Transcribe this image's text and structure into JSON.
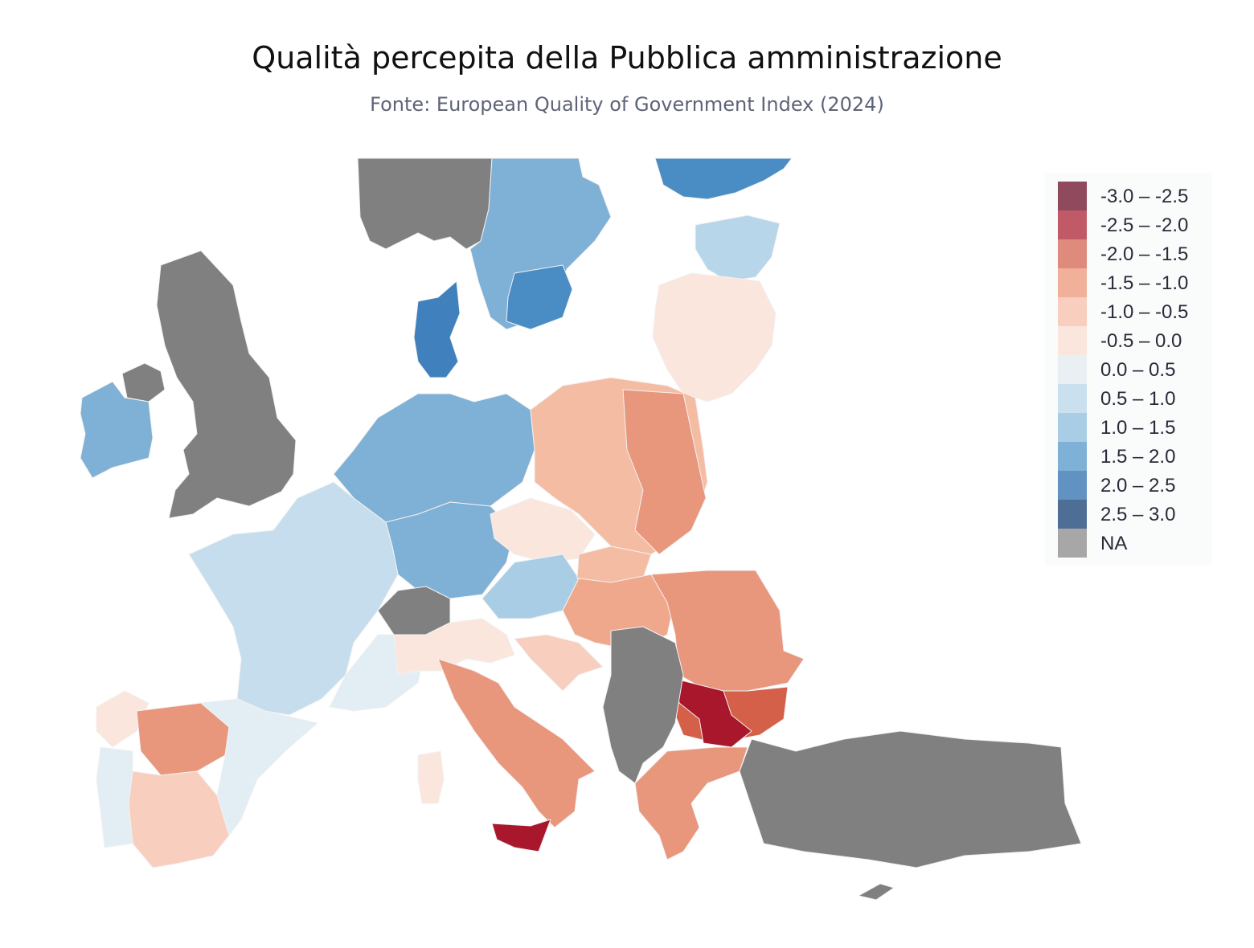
{
  "header": {
    "title": "Qualità percepita della Pubblica amministrazione",
    "subtitle": "Fonte: European Quality of Government Index (2024)"
  },
  "legend": {
    "items": [
      {
        "label": "-3.0 – -2.5",
        "color": "#8f4a5e"
      },
      {
        "label": "-2.5 – -2.0",
        "color": "#c05a66"
      },
      {
        "label": "-2.0 – -1.5",
        "color": "#de8a7c"
      },
      {
        "label": "-1.5 – -1.0",
        "color": "#f0b09a"
      },
      {
        "label": "-1.0 – -0.5",
        "color": "#f8cebe"
      },
      {
        "label": "-0.5 – 0.0",
        "color": "#fae6dc"
      },
      {
        "label": "0.0 – 0.5",
        "color": "#e9eff3"
      },
      {
        "label": "0.5 – 1.0",
        "color": "#cbe0ee"
      },
      {
        "label": "1.0 – 1.5",
        "color": "#a9cde4"
      },
      {
        "label": "1.5 – 2.0",
        "color": "#7fb0d5"
      },
      {
        "label": "2.0 – 2.5",
        "color": "#6292c2"
      },
      {
        "label": "2.5 – 3.0",
        "color": "#4f6e96"
      },
      {
        "label": "NA",
        "color": "#a7a7a7"
      }
    ]
  },
  "regions": [
    {
      "name": "Norway",
      "class": "NA",
      "color": "#808080"
    },
    {
      "name": "Sweden",
      "class": "1.5 – 2.0",
      "color": "#7fb0d5"
    },
    {
      "name": "Sweden South",
      "class": "2.0 – 2.5",
      "color": "#4a8cc4"
    },
    {
      "name": "Finland",
      "class": "2.0 – 2.5",
      "color": "#4a8cc4"
    },
    {
      "name": "Finland South",
      "class": "1.0 – 1.5",
      "color": "#b8d6ea"
    },
    {
      "name": "Russia West",
      "class": "-0.5 – 0.0",
      "color": "#fae6dc"
    },
    {
      "name": "Denmark",
      "class": "2.0 – 2.5",
      "color": "#3f80bd"
    },
    {
      "name": "United Kingdom",
      "class": "NA",
      "color": "#808080"
    },
    {
      "name": "Northern Ireland",
      "class": "NA",
      "color": "#808080"
    },
    {
      "name": "Ireland",
      "class": "1.5 – 2.0",
      "color": "#7fb0d5"
    },
    {
      "name": "Germany North",
      "class": "1.5 – 2.0",
      "color": "#7fb0d5"
    },
    {
      "name": "Germany South",
      "class": "1.5 – 2.0",
      "color": "#7fb0d5"
    },
    {
      "name": "Poland",
      "class": "-1.5 – -1.0",
      "color": "#f5bca4"
    },
    {
      "name": "Poland East",
      "class": "-2.0 – -1.5",
      "color": "#e8967c"
    },
    {
      "name": "Czechia",
      "class": "-0.5 – 0.0",
      "color": "#fae6dc"
    },
    {
      "name": "Austria",
      "class": "1.0 – 1.5",
      "color": "#a9cde4"
    },
    {
      "name": "Slovakia",
      "class": "-1.5 – -1.0",
      "color": "#f5bca4"
    },
    {
      "name": "Hungary",
      "class": "-1.5 – -1.0",
      "color": "#f0a88c"
    },
    {
      "name": "Romania",
      "class": "-2.0 – -1.5",
      "color": "#e8967c"
    },
    {
      "name": "Bulgaria",
      "class": "-2.5 – -2.0",
      "color": "#d4604a"
    },
    {
      "name": "Bulgaria Southwest",
      "class": "-3.0 – -2.5",
      "color": "#a8172c"
    },
    {
      "name": "France",
      "class": "0.5 – 1.0",
      "color": "#c5ddec"
    },
    {
      "name": "France Southeast",
      "class": "0.0 – 0.5",
      "color": "#e3edf4"
    },
    {
      "name": "Switzerland",
      "class": "NA",
      "color": "#808080"
    },
    {
      "name": "Spain Northwest",
      "class": "-0.5 – 0.0",
      "color": "#fae6dc"
    },
    {
      "name": "Spain Centre",
      "class": "-2.0 – -1.5",
      "color": "#e8967c"
    },
    {
      "name": "Spain South",
      "class": "-1.5 – -1.0",
      "color": "#f8cebe"
    },
    {
      "name": "Portugal",
      "class": "0.0 – 0.5",
      "color": "#e3edf4"
    },
    {
      "name": "Italy North",
      "class": "-0.5 – 0.0",
      "color": "#fae6dc"
    },
    {
      "name": "Italy South",
      "class": "-2.0 – -1.5",
      "color": "#e8967c"
    },
    {
      "name": "Sicily",
      "class": "-3.0 – -2.5",
      "color": "#a8172c"
    },
    {
      "name": "Sardinia",
      "class": "-0.5 – 0.0",
      "color": "#fae6dc"
    },
    {
      "name": "Croatia",
      "class": "-1.0 – -0.5",
      "color": "#f8cebe"
    },
    {
      "name": "Western Balkans",
      "class": "NA",
      "color": "#808080"
    },
    {
      "name": "Greece",
      "class": "-2.0 – -1.5",
      "color": "#e8967c"
    },
    {
      "name": "Turkey",
      "class": "NA",
      "color": "#808080"
    },
    {
      "name": "Cyprus",
      "class": "NA",
      "color": "#808080"
    }
  ]
}
